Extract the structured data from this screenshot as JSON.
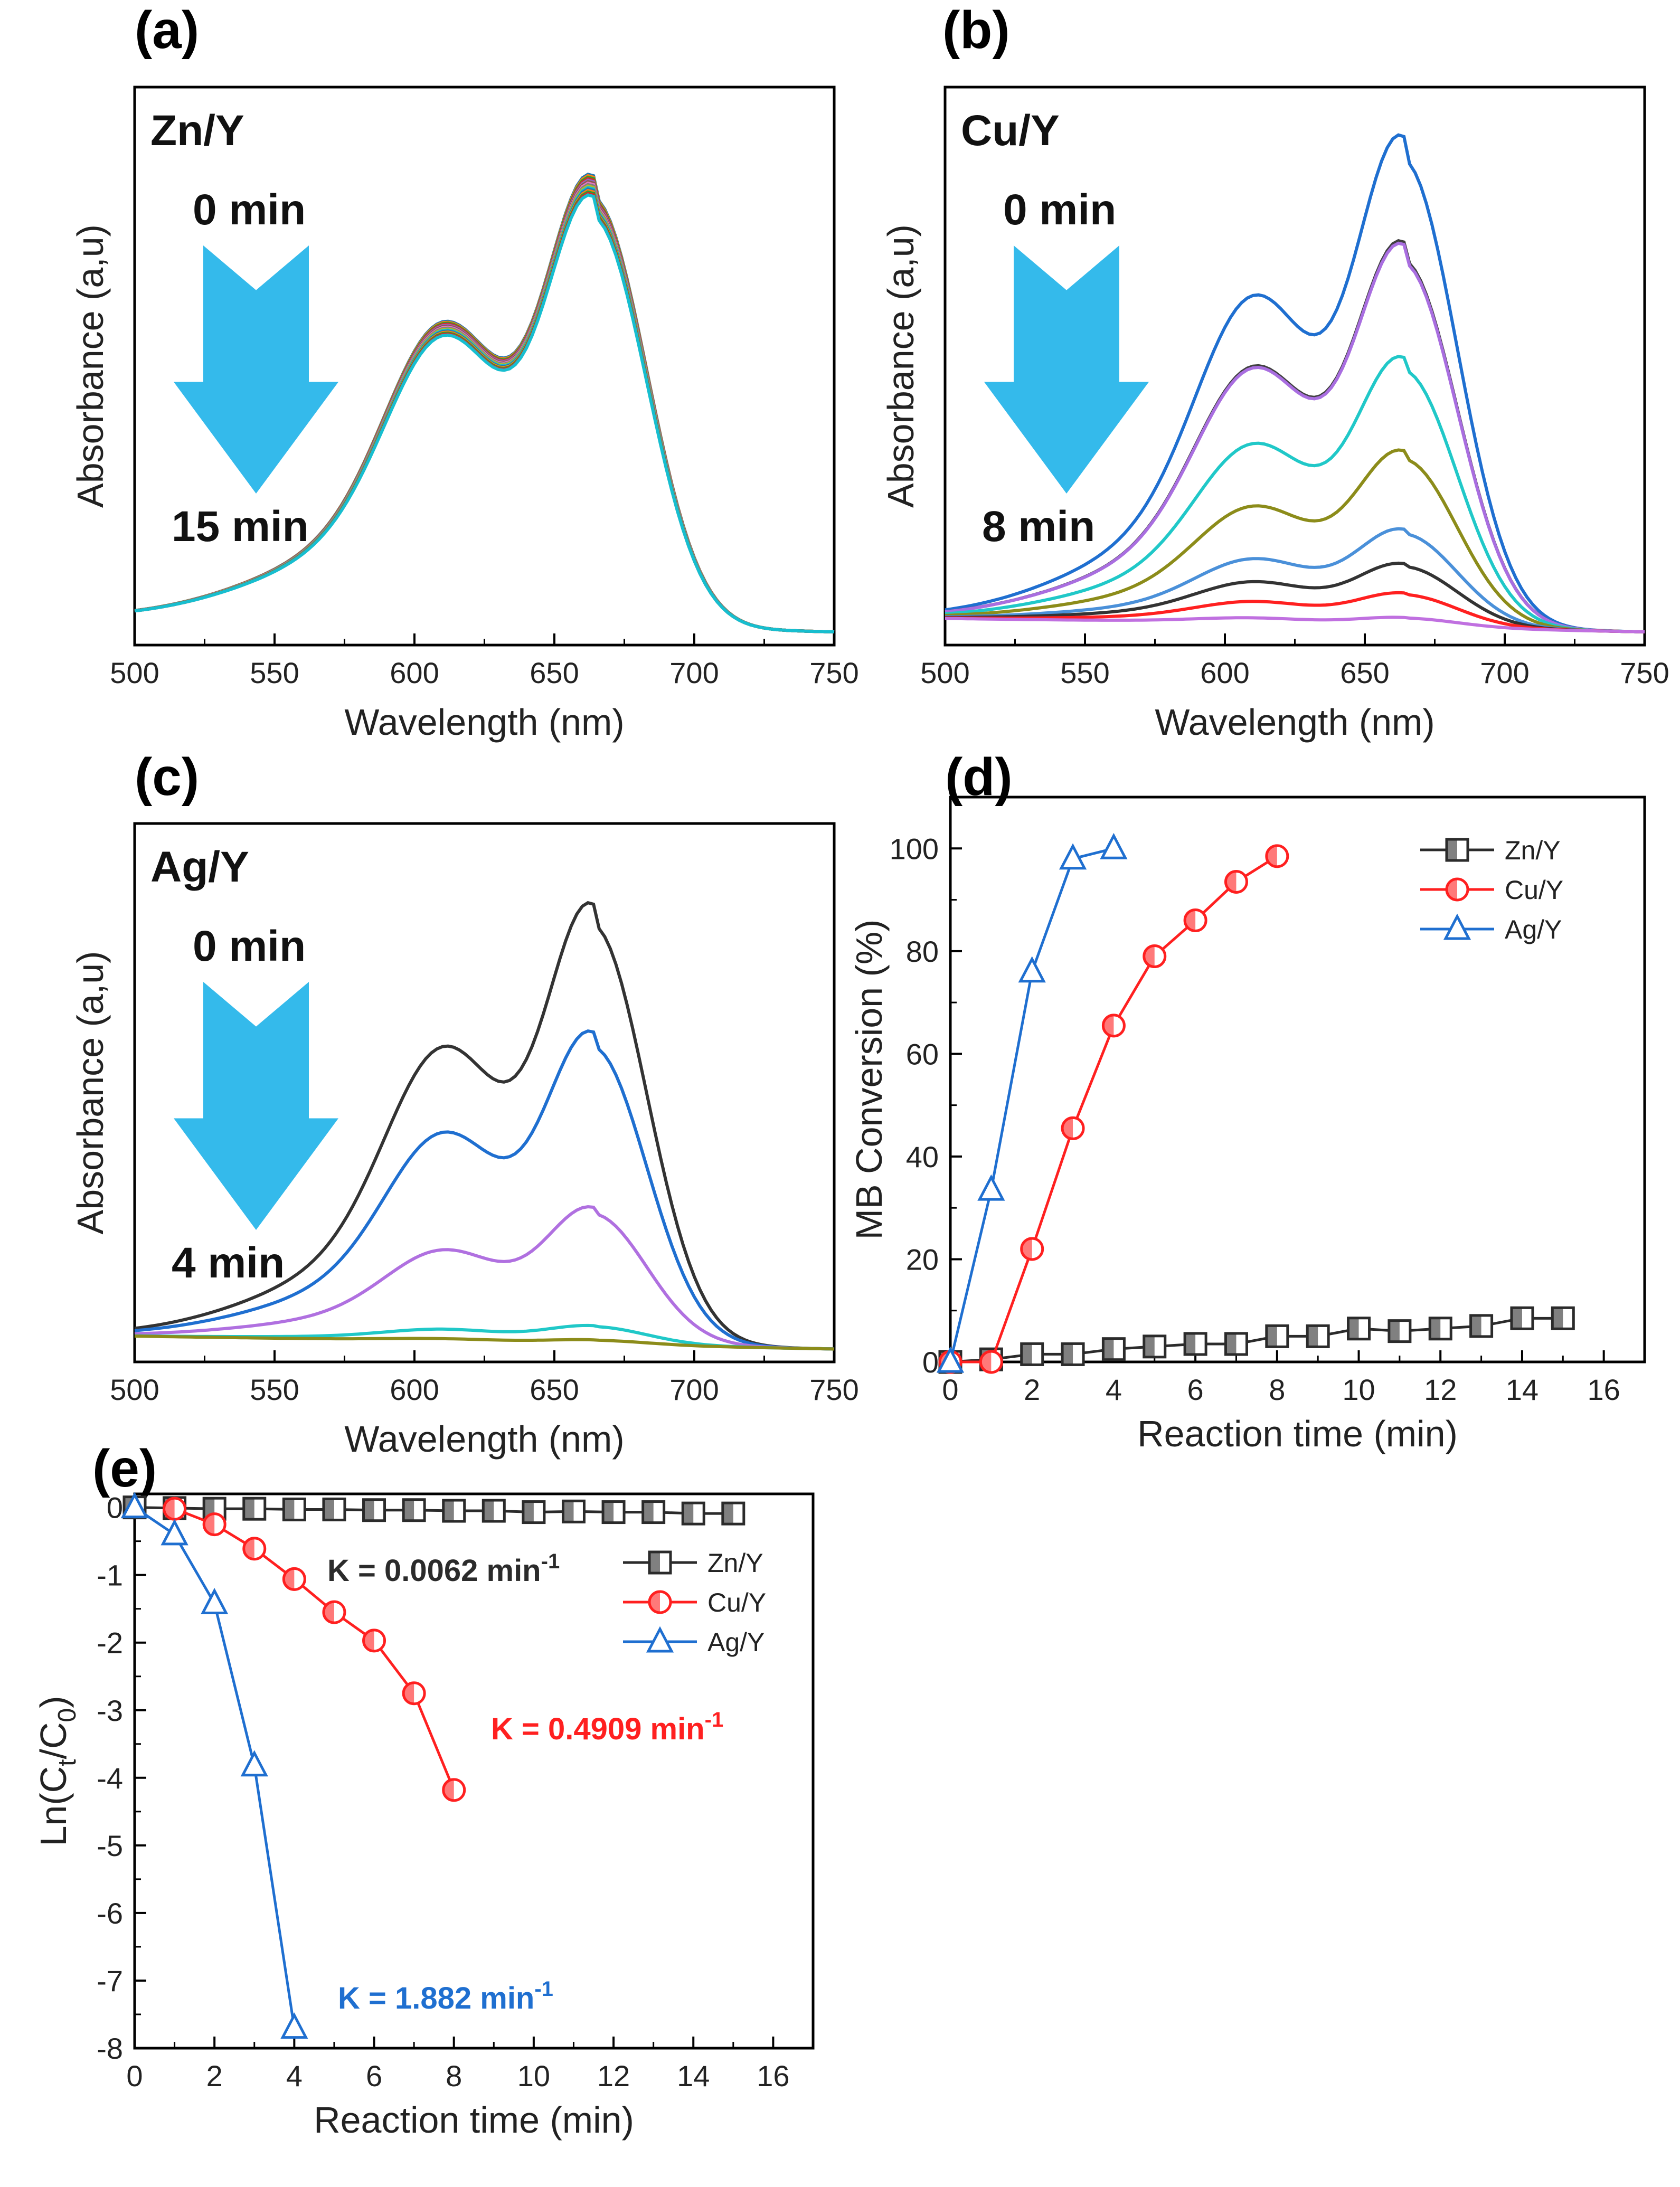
{
  "panel_labels": {
    "a": "(a)",
    "b": "(b)",
    "c": "(c)",
    "d": "(d)",
    "e": "(e)"
  },
  "colors": {
    "zn": "#2b2b2b",
    "cu": "#ff2020",
    "ag": "#1f6fd0",
    "arrow": "#29b6ea"
  },
  "chart_data": [
    {
      "id": "a",
      "type": "line",
      "sample": "Zn/Y",
      "time_start": "0 min",
      "time_end": "15 min",
      "xlabel": "Wavelength (nm)",
      "ylabel": "Absorbance (a,u)",
      "xlim": [
        500,
        750
      ],
      "xticks": [
        500,
        550,
        600,
        650,
        700,
        750
      ],
      "ylim": [
        0,
        1.0
      ],
      "series_colors": [
        "#1f77b4",
        "#ff7f0e",
        "#2ca02c",
        "#d62728",
        "#9467bd",
        "#8c564b",
        "#e377c2",
        "#7f7f7f",
        "#bcbd22",
        "#17becf",
        "#1f77b4",
        "#ff7f0e",
        "#2ca02c",
        "#d62728",
        "#17becf"
      ],
      "spectra_scales": [
        0.92,
        0.917,
        0.914,
        0.911,
        0.908,
        0.905,
        0.902,
        0.899,
        0.896,
        0.893,
        0.89,
        0.887,
        0.884,
        0.881,
        0.878
      ],
      "baseline": 0.04
    },
    {
      "id": "b",
      "type": "line",
      "sample": "Cu/Y",
      "time_start": "0 min",
      "time_end": "8 min",
      "xlabel": "Wavelength (nm)",
      "ylabel": "Absorbance (a,u)",
      "xlim": [
        500,
        750
      ],
      "xticks": [
        500,
        550,
        600,
        650,
        700,
        750
      ],
      "ylim": [
        0,
        1.0
      ],
      "series_colors": [
        "#1f6fd0",
        "#404040",
        "#a96ee0",
        "#20c8c8",
        "#8c8c1a",
        "#4a90d9",
        "#333333",
        "#ff2020",
        "#c070e0"
      ],
      "spectra_scales": [
        1.0,
        0.785,
        0.78,
        0.55,
        0.36,
        0.2,
        0.13,
        0.07,
        0.02
      ],
      "baseline": 0.04
    },
    {
      "id": "c",
      "type": "line",
      "sample": "Ag/Y",
      "time_start": "0 min",
      "time_end": "4 min",
      "xlabel": "Wavelength (nm)",
      "ylabel": "Absorbance (a,u)",
      "xlim": [
        500,
        750
      ],
      "xticks": [
        500,
        550,
        600,
        650,
        700,
        750
      ],
      "ylim": [
        0,
        1.0
      ],
      "series_colors": [
        "#333333",
        "#1f6fd0",
        "#b070e0",
        "#20c8c8",
        "#8c8c1a"
      ],
      "spectra_scales": [
        0.93,
        0.66,
        0.29,
        0.04,
        0.01
      ],
      "baseline": 0.04
    },
    {
      "id": "d",
      "type": "line",
      "xlabel": "Reaction time (min)",
      "ylabel": "MB Conversion (%)",
      "xlim": [
        0,
        17
      ],
      "xticks": [
        0,
        2,
        4,
        6,
        8,
        10,
        12,
        14,
        16
      ],
      "ylim": [
        0,
        110
      ],
      "yticks": [
        0,
        20,
        40,
        60,
        80,
        100
      ],
      "legend_position": "top-right",
      "series": [
        {
          "name": "Zn/Y",
          "marker": "square",
          "x": [
            0,
            1,
            2,
            3,
            4,
            5,
            6,
            7,
            8,
            9,
            10,
            11,
            12,
            13,
            14,
            15
          ],
          "y": [
            0,
            0.5,
            1.5,
            1.5,
            2.5,
            3,
            3.5,
            3.5,
            5,
            5,
            6.5,
            6,
            6.5,
            7,
            8.5,
            8.5
          ]
        },
        {
          "name": "Cu/Y",
          "marker": "circle",
          "x": [
            0,
            1,
            2,
            3,
            4,
            5,
            6,
            7,
            8
          ],
          "y": [
            0,
            0,
            22,
            45.5,
            65.5,
            79,
            86,
            93.5,
            98.5
          ]
        },
        {
          "name": "Ag/Y",
          "marker": "triangle",
          "x": [
            0,
            1,
            2,
            3,
            4
          ],
          "y": [
            0,
            33.5,
            76,
            98,
            100
          ]
        }
      ]
    },
    {
      "id": "e",
      "type": "line",
      "xlabel": "Reaction time (min)",
      "ylabel": "Ln(C",
      "ylabel_sub1": "t",
      "ylabel_mid": "/C",
      "ylabel_sub2": "0",
      "ylabel_end": ")",
      "xlim": [
        0,
        17
      ],
      "xticks": [
        0,
        2,
        4,
        6,
        8,
        10,
        12,
        14,
        16
      ],
      "ylim": [
        -8,
        0.2
      ],
      "yticks": [
        0,
        -1,
        -2,
        -3,
        -4,
        -5,
        -6,
        -7,
        -8
      ],
      "legend_position": "top-right",
      "series": [
        {
          "name": "Zn/Y",
          "marker": "square",
          "x": [
            0,
            1,
            2,
            3,
            4,
            5,
            6,
            7,
            8,
            9,
            10,
            11,
            12,
            13,
            14,
            15
          ],
          "y": [
            0,
            -0.01,
            -0.02,
            -0.02,
            -0.03,
            -0.03,
            -0.04,
            -0.04,
            -0.05,
            -0.05,
            -0.07,
            -0.06,
            -0.07,
            -0.07,
            -0.09,
            -0.09
          ]
        },
        {
          "name": "Cu/Y",
          "marker": "circle",
          "x": [
            1,
            2,
            3,
            4,
            5,
            6,
            7,
            8
          ],
          "y": [
            -0.02,
            -0.25,
            -0.61,
            -1.06,
            -1.55,
            -1.97,
            -2.75,
            -4.18
          ]
        },
        {
          "name": "Ag/Y",
          "marker": "triangle",
          "x": [
            0,
            1,
            2,
            3,
            4
          ],
          "y": [
            0,
            -0.4,
            -1.42,
            -3.82,
            -7.7
          ]
        }
      ],
      "annotations": [
        {
          "text": "K = 0.0062 min",
          "sup": "-1",
          "series": "Zn/Y"
        },
        {
          "text": "K = 0.4909 min",
          "sup": "-1",
          "series": "Cu/Y"
        },
        {
          "text": "K = 1.882 min",
          "sup": "-1",
          "series": "Ag/Y"
        }
      ]
    }
  ]
}
